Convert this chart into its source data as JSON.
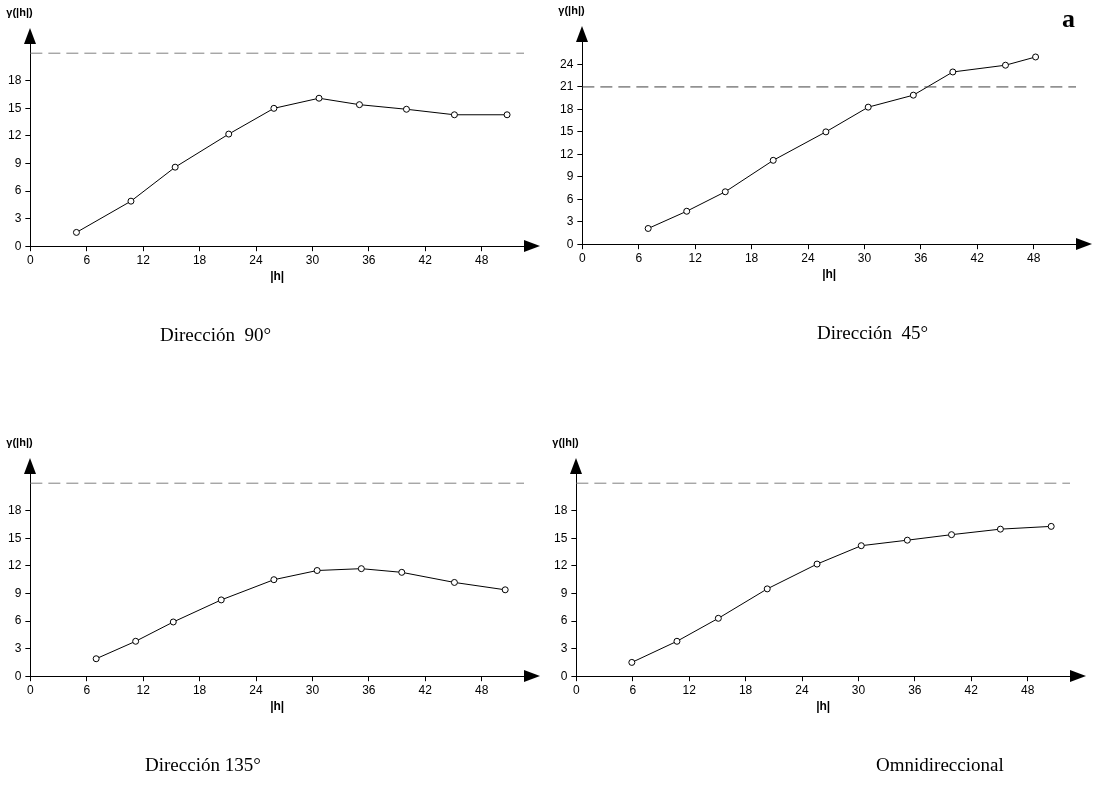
{
  "chart_data": [
    {
      "type": "line",
      "title": "Dirección  90°",
      "xlabel": "|h|",
      "ylabel": "γ(|h|)",
      "xlim": [
        0,
        52.5
      ],
      "ylim": [
        0,
        22
      ],
      "xticks": [
        0,
        6,
        12,
        18,
        24,
        30,
        36,
        42,
        48
      ],
      "yticks": [
        0,
        3,
        6,
        9,
        12,
        15,
        18
      ],
      "grid": false,
      "legend": false,
      "marker": "circle",
      "line_style": "solid",
      "series": [
        {
          "color": "#000000",
          "x": [
            4.9,
            10.7,
            15.4,
            21.1,
            25.9,
            30.7,
            35.0,
            40.0,
            45.1,
            50.7
          ],
          "values": [
            1.5,
            4.9,
            8.6,
            12.2,
            15.0,
            16.1,
            15.4,
            14.9,
            14.3,
            14.3
          ]
        }
      ],
      "ref_lines": [
        {
          "axis": "y",
          "value": 21,
          "color": "#808080",
          "line_style": "dashed"
        }
      ]
    },
    {
      "type": "line",
      "title": "Dirección  45°",
      "xlabel": "|h|",
      "ylabel": "γ(|h|)",
      "xlim": [
        0,
        52.5
      ],
      "ylim": [
        0,
        27
      ],
      "xticks": [
        0,
        6,
        12,
        18,
        24,
        30,
        36,
        42,
        48
      ],
      "yticks": [
        0,
        3,
        6,
        9,
        12,
        15,
        18,
        21,
        24
      ],
      "grid": false,
      "legend": false,
      "marker": "circle",
      "line_style": "solid",
      "annotations": [
        "a"
      ],
      "series": [
        {
          "color": "#000000",
          "x": [
            7.0,
            11.1,
            15.2,
            20.3,
            25.9,
            30.4,
            35.2,
            39.4,
            45.0,
            48.2
          ],
          "values": [
            2.1,
            4.4,
            7.0,
            11.2,
            15.0,
            18.3,
            19.9,
            23.0,
            23.9,
            25.0
          ]
        }
      ],
      "ref_lines": [
        {
          "axis": "y",
          "value": 21,
          "color": "#404040",
          "line_style": "dashed"
        }
      ]
    },
    {
      "type": "line",
      "title": "Dirección 135°",
      "xlabel": "|h|",
      "ylabel": "γ(|h|)",
      "xlim": [
        0,
        52.5
      ],
      "ylim": [
        0,
        22
      ],
      "xticks": [
        0,
        6,
        12,
        18,
        24,
        30,
        36,
        42,
        48
      ],
      "yticks": [
        0,
        3,
        6,
        9,
        12,
        15,
        18
      ],
      "grid": false,
      "legend": false,
      "marker": "circle",
      "line_style": "solid",
      "series": [
        {
          "color": "#000000",
          "x": [
            7.0,
            11.2,
            15.2,
            20.3,
            25.9,
            30.5,
            35.2,
            39.5,
            45.1,
            50.5
          ],
          "values": [
            1.9,
            3.8,
            5.9,
            8.3,
            10.5,
            11.5,
            11.7,
            11.3,
            10.2,
            9.4
          ]
        }
      ],
      "ref_lines": [
        {
          "axis": "y",
          "value": 21,
          "color": "#808080",
          "line_style": "dashed"
        }
      ]
    },
    {
      "type": "line",
      "title": "Omnidireccional",
      "xlabel": "|h|",
      "ylabel": "γ(|h|)",
      "xlim": [
        0,
        52.5
      ],
      "ylim": [
        0,
        22
      ],
      "xticks": [
        0,
        6,
        12,
        18,
        24,
        30,
        36,
        42,
        48
      ],
      "yticks": [
        0,
        3,
        6,
        9,
        12,
        15,
        18
      ],
      "grid": false,
      "legend": false,
      "marker": "circle",
      "line_style": "solid",
      "series": [
        {
          "color": "#000000",
          "x": [
            5.9,
            10.7,
            15.1,
            20.3,
            25.6,
            30.3,
            35.2,
            39.9,
            45.1,
            50.5
          ],
          "values": [
            1.5,
            3.8,
            6.3,
            9.5,
            12.2,
            14.2,
            14.8,
            15.4,
            16.0,
            16.3
          ]
        }
      ],
      "ref_lines": [
        {
          "axis": "y",
          "value": 21,
          "color": "#808080",
          "line_style": "dashed"
        }
      ]
    }
  ]
}
